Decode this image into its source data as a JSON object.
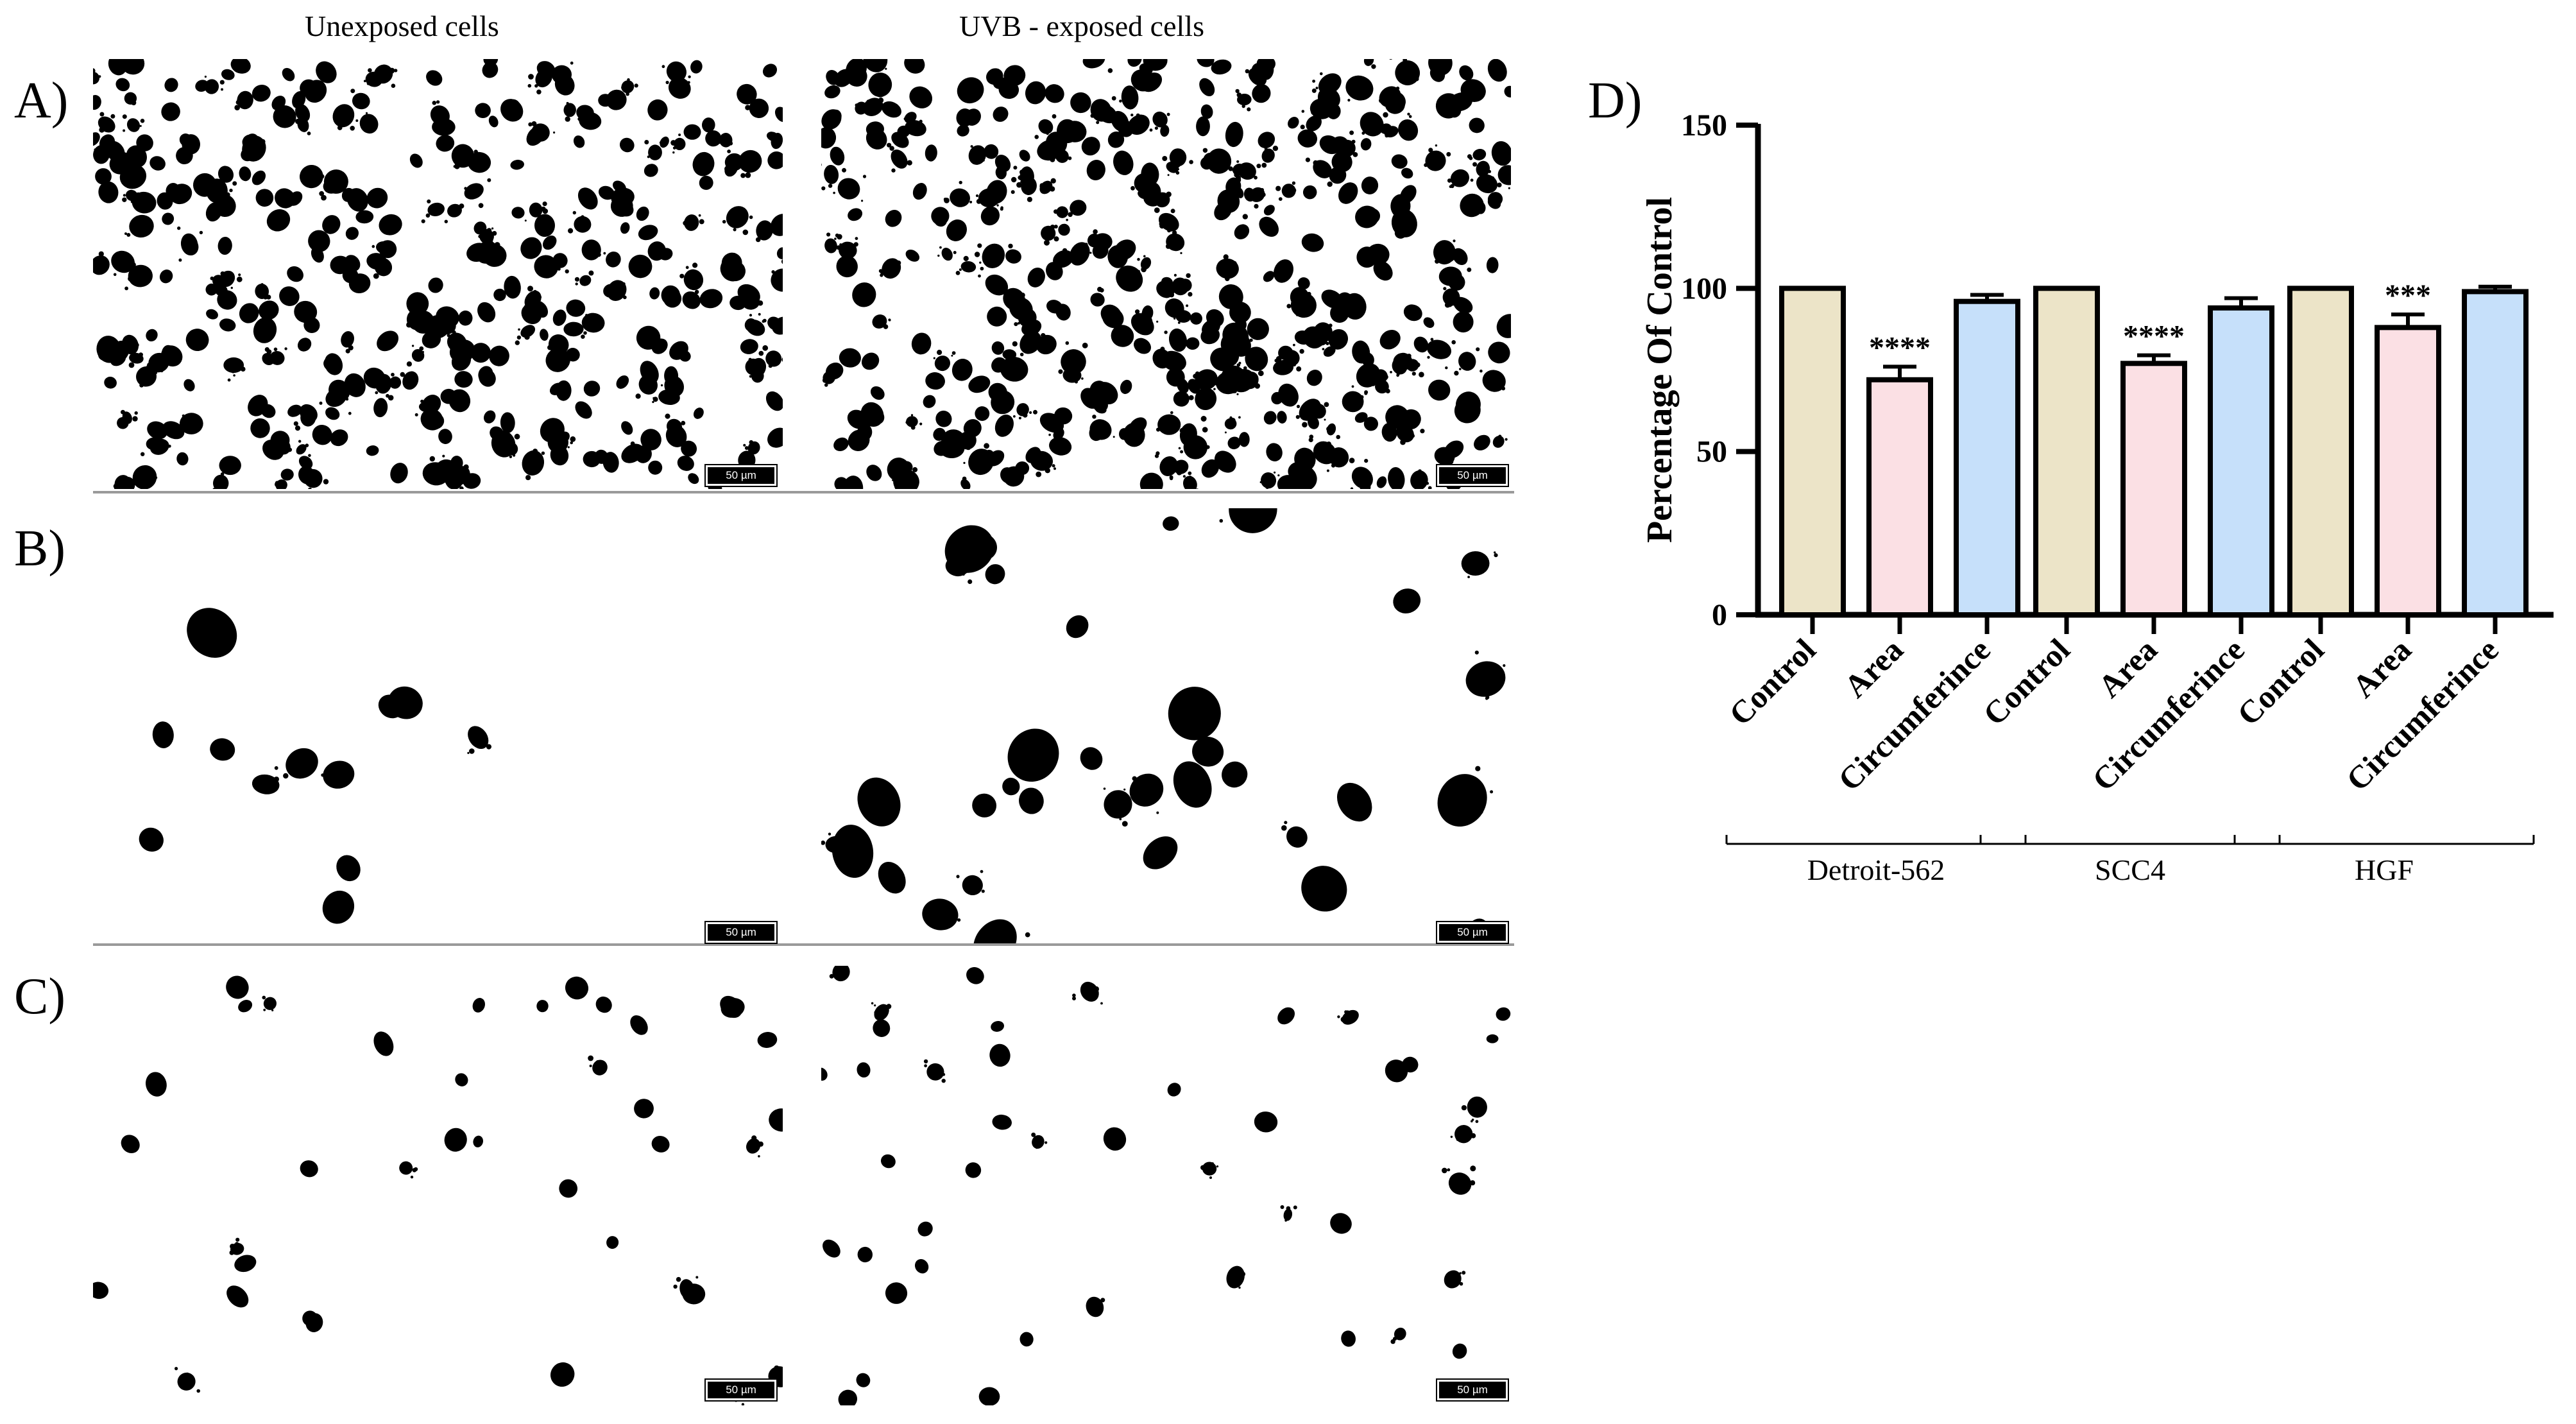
{
  "figure": {
    "column_titles": [
      "Unexposed cells",
      "UVB - exposed cells"
    ],
    "panel_labels": [
      "A)",
      "B)",
      "C)",
      "D)"
    ],
    "scale_bar_label": "50 µm"
  },
  "chart_data": {
    "type": "bar",
    "title": "",
    "ylabel": "Percentage Of Control",
    "xlabel": "",
    "ylim": [
      0,
      150
    ],
    "yticks": [
      0,
      50,
      100,
      150
    ],
    "groups": [
      "Detroit-562",
      "SCC4",
      "HGF"
    ],
    "categories": [
      "Control",
      "Area",
      "Circumferince"
    ],
    "colors": {
      "Control": "#ece4c8",
      "Area": "#fbe0e4",
      "Circumferince": "#c6e0fa"
    },
    "series": [
      {
        "group": "Detroit-562",
        "values": [
          100,
          72,
          96
        ],
        "errors": [
          0,
          4,
          2
        ],
        "annotations": [
          "",
          "****",
          ""
        ]
      },
      {
        "group": "SCC4",
        "values": [
          100,
          77,
          94
        ],
        "errors": [
          0,
          2.5,
          3
        ],
        "annotations": [
          "",
          "****",
          ""
        ]
      },
      {
        "group": "HGF",
        "values": [
          100,
          88,
          99
        ],
        "errors": [
          0,
          4,
          1.5
        ],
        "annotations": [
          "",
          "***",
          ""
        ]
      }
    ],
    "grid": false,
    "legend": "none"
  }
}
